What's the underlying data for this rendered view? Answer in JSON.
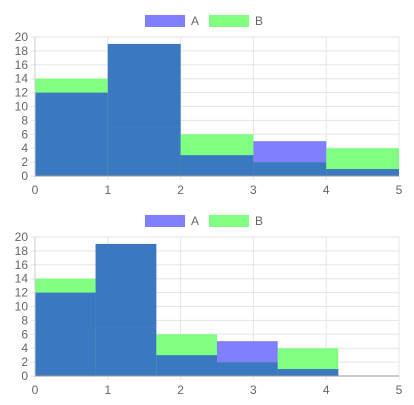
{
  "chart_data": [
    {
      "type": "bar",
      "bar_layout": "histogram",
      "x": [
        0,
        1,
        2,
        3,
        4
      ],
      "bin_width": 1,
      "series": [
        {
          "name": "A",
          "values": [
            12,
            19,
            3,
            5,
            1
          ],
          "color": "#8080ff"
        },
        {
          "name": "B",
          "values": [
            14,
            7,
            6,
            2,
            4
          ],
          "color": "#80ff80"
        }
      ],
      "xlim": [
        0,
        5
      ],
      "ylim": [
        0,
        20
      ],
      "x_ticks": [
        "0",
        "1",
        "2",
        "3",
        "4",
        "5"
      ],
      "y_ticks": [
        "0",
        "2",
        "4",
        "6",
        "8",
        "10",
        "12",
        "14",
        "16",
        "18",
        "20"
      ],
      "legend": "top-center",
      "grid": true
    },
    {
      "type": "bar",
      "bar_layout": "histogram",
      "x": [
        0,
        0.833,
        1.667,
        2.5,
        3.333
      ],
      "bin_width": 0.833,
      "series": [
        {
          "name": "A",
          "values": [
            12,
            19,
            3,
            5,
            1
          ],
          "color": "#8080ff"
        },
        {
          "name": "B",
          "values": [
            14,
            7,
            6,
            2,
            4
          ],
          "color": "#80ff80"
        }
      ],
      "xlim": [
        0,
        5
      ],
      "ylim": [
        0,
        20
      ],
      "x_ticks": [
        "0",
        "1",
        "2",
        "3",
        "4",
        "5"
      ],
      "y_ticks": [
        "0",
        "2",
        "4",
        "6",
        "8",
        "10",
        "12",
        "14",
        "16",
        "18",
        "20"
      ],
      "legend": "top-center",
      "grid": true
    }
  ]
}
